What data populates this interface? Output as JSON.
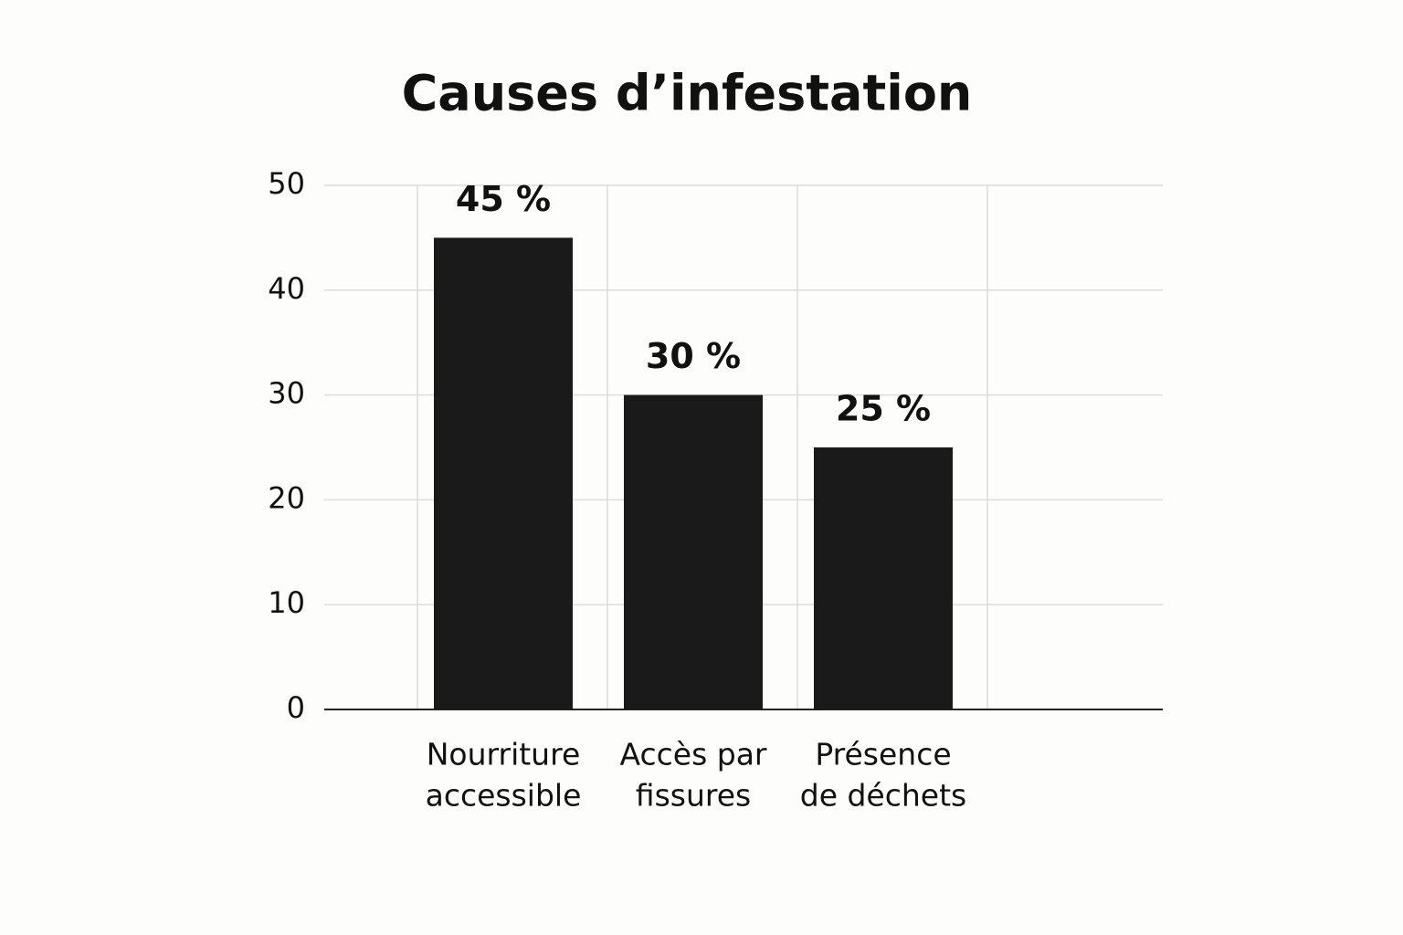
{
  "chart_data": {
    "type": "bar",
    "title": "Causes d’infestation",
    "categories": [
      [
        "Nourriture",
        "accessible"
      ],
      [
        "Accès par",
        "fissures"
      ],
      [
        "Présence",
        "de déchets"
      ]
    ],
    "values": [
      45,
      30,
      25
    ],
    "value_labels": [
      "45 %",
      "30 %",
      "25 %"
    ],
    "color": "#1a1a1a",
    "ylim": [
      0,
      50
    ],
    "yticks": [
      0,
      10,
      20,
      30,
      40,
      50
    ],
    "grid": true
  }
}
